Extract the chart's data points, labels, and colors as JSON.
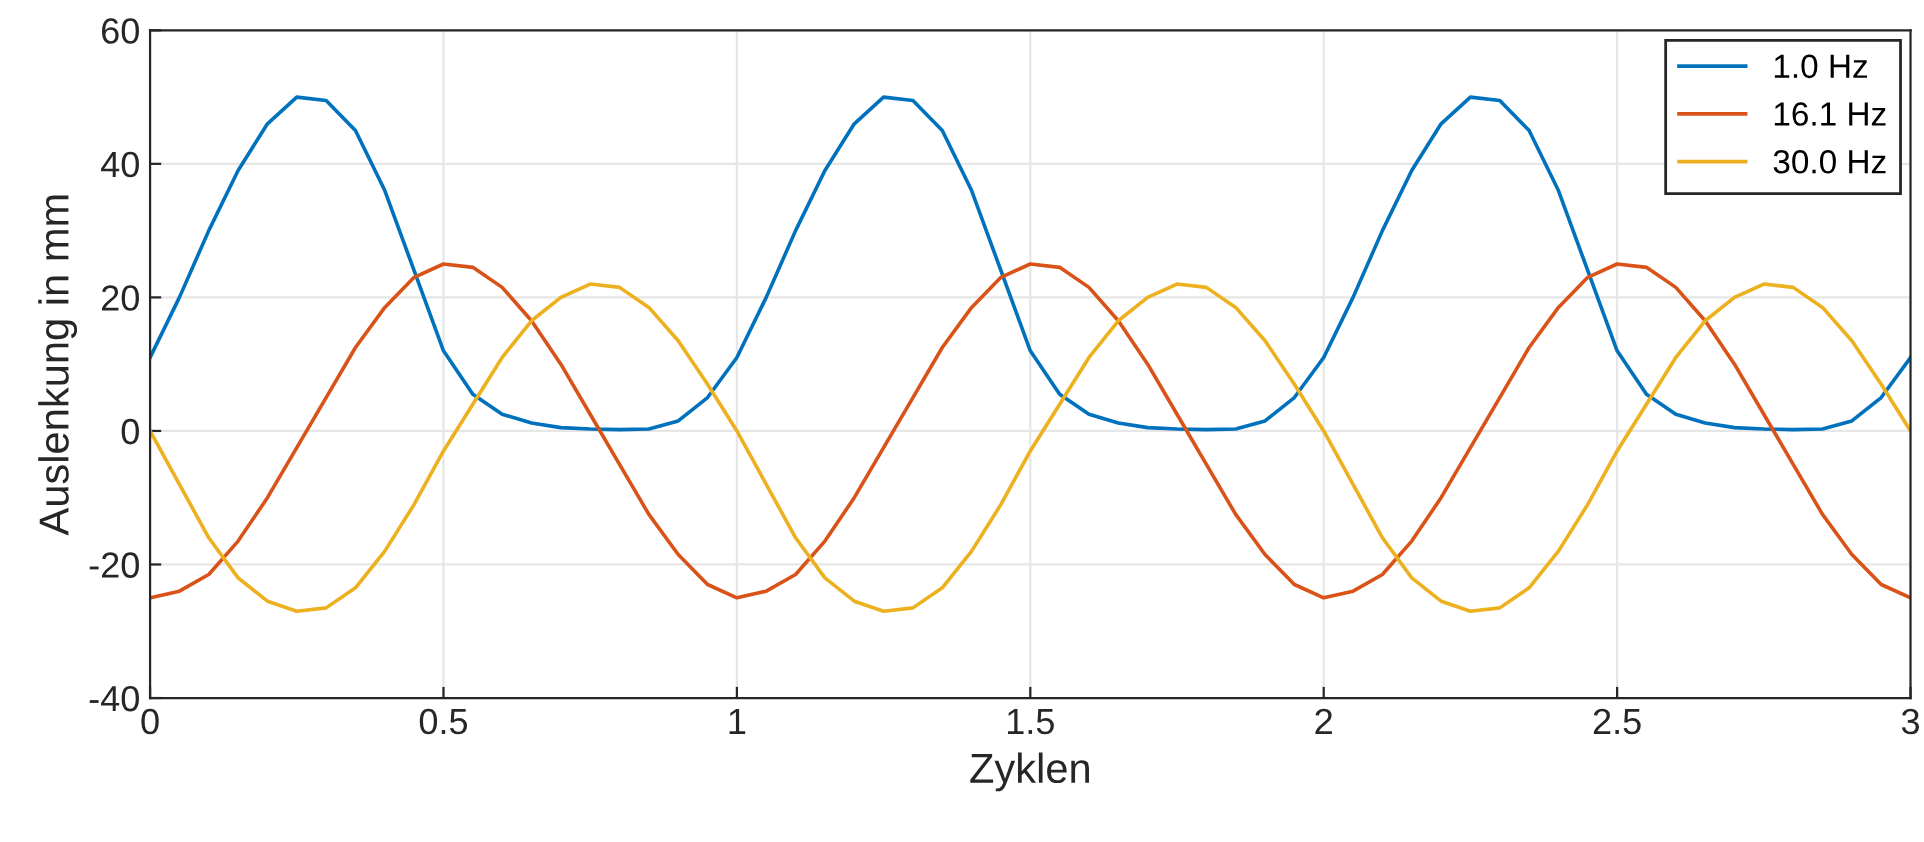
{
  "chart_data": {
    "type": "line",
    "xlabel": "Zyklen",
    "ylabel": "Auslenkung in mm",
    "x": [
      0,
      0.05,
      0.1,
      0.15,
      0.2,
      0.25,
      0.3,
      0.35,
      0.4,
      0.45,
      0.5,
      0.55,
      0.6,
      0.65,
      0.7,
      0.75,
      0.8,
      0.85,
      0.9,
      0.95,
      1,
      1.05,
      1.1,
      1.15,
      1.2,
      1.25,
      1.3,
      1.35,
      1.4,
      1.45,
      1.5,
      1.55,
      1.6,
      1.65,
      1.7,
      1.75,
      1.8,
      1.85,
      1.9,
      1.95,
      2,
      2.05,
      2.1,
      2.15,
      2.2,
      2.25,
      2.3,
      2.35,
      2.4,
      2.45,
      2.5,
      2.55,
      2.6,
      2.65,
      2.7,
      2.75,
      2.8,
      2.85,
      2.9,
      2.95,
      3
    ],
    "series": [
      {
        "name": "1.0 Hz",
        "color": "#0072bd",
        "values": [
          11,
          20,
          30,
          39,
          46,
          50,
          49.5,
          45,
          36,
          24,
          12,
          5.5,
          2.5,
          1.2,
          0.5,
          0.3,
          0.2,
          0.3,
          1.5,
          5,
          11,
          20,
          30,
          39,
          46,
          50,
          49.5,
          45,
          36,
          24,
          12,
          5.5,
          2.5,
          1.2,
          0.5,
          0.3,
          0.2,
          0.3,
          1.5,
          5,
          11,
          20,
          30,
          39,
          46,
          50,
          49.5,
          45,
          36,
          24,
          12,
          5.5,
          2.5,
          1.2,
          0.5,
          0.3,
          0.2,
          0.3,
          1.5,
          5,
          11
        ]
      },
      {
        "name": "16.1 Hz",
        "color": "#d95319",
        "values": [
          -25,
          -24,
          -21.5,
          -16.5,
          -10,
          -2.5,
          5,
          12.5,
          18.5,
          23,
          25,
          24.5,
          21.5,
          16.5,
          10,
          2.5,
          -5,
          -12.5,
          -18.5,
          -23,
          -25,
          -24,
          -21.5,
          -16.5,
          -10,
          -2.5,
          5,
          12.5,
          18.5,
          23,
          25,
          24.5,
          21.5,
          16.5,
          10,
          2.5,
          -5,
          -12.5,
          -18.5,
          -23,
          -25,
          -24,
          -21.5,
          -16.5,
          -10,
          -2.5,
          5,
          12.5,
          18.5,
          23,
          25,
          24.5,
          21.5,
          16.5,
          10,
          2.5,
          -5,
          -12.5,
          -18.5,
          -23,
          -25
        ]
      },
      {
        "name": "30.0 Hz",
        "color": "#edb120",
        "values": [
          0,
          -8,
          -16,
          -22,
          -25.5,
          -27,
          -26.5,
          -23.5,
          -18,
          -11,
          -3,
          4,
          11,
          16.5,
          20,
          22,
          21.5,
          18.5,
          13.5,
          7,
          0,
          -8,
          -16,
          -22,
          -25.5,
          -27,
          -26.5,
          -23.5,
          -18,
          -11,
          -3,
          4,
          11,
          16.5,
          20,
          22,
          21.5,
          18.5,
          13.5,
          7,
          0,
          -8,
          -16,
          -22,
          -25.5,
          -27,
          -26.5,
          -23.5,
          -18,
          -11,
          -3,
          4,
          11,
          16.5,
          20,
          22,
          21.5,
          18.5,
          13.5,
          7,
          0
        ]
      }
    ],
    "xlim": [
      0,
      3
    ],
    "xticks": [
      0,
      0.5,
      1,
      1.5,
      2,
      2.5,
      3
    ],
    "ylim": [
      -40,
      60
    ],
    "yticks": [
      -40,
      -20,
      0,
      20,
      40,
      60
    ],
    "grid": true,
    "legend": "top right",
    "marker": "none",
    "line_style": "solid"
  }
}
